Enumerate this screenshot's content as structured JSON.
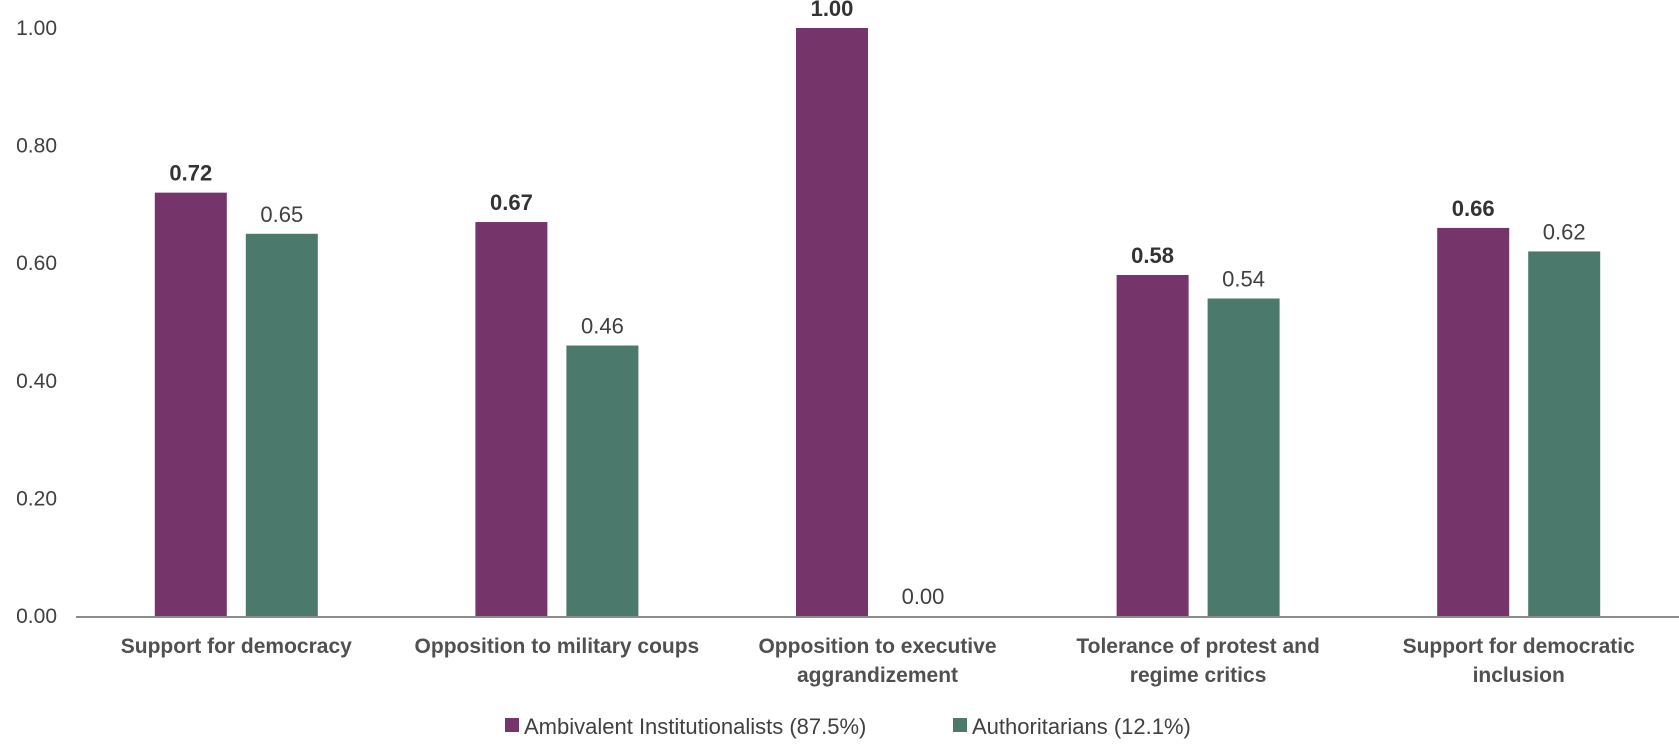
{
  "chart_data": {
    "type": "bar",
    "title": "",
    "xlabel": "",
    "ylabel": "",
    "ylim": [
      0,
      1
    ],
    "yticks": [
      "0.00",
      "0.20",
      "0.40",
      "0.60",
      "0.80",
      "1.00"
    ],
    "grid": false,
    "legend_position": "bottom-center",
    "categories": [
      [
        "Support for democracy"
      ],
      [
        "Opposition to military coups"
      ],
      [
        "Opposition to executive",
        "aggrandizement"
      ],
      [
        "Tolerance of protest and",
        "regime critics"
      ],
      [
        "Support for democratic",
        "inclusion"
      ]
    ],
    "series": [
      {
        "name": "Ambivalent Institutionalists (87.5%)",
        "color": "#76356a",
        "values": [
          0.72,
          0.67,
          1.0,
          0.58,
          0.66
        ],
        "labels": [
          "0.72",
          "0.67",
          "1.00",
          "0.58",
          "0.66"
        ],
        "label_bold": true
      },
      {
        "name": "Authoritarians (12.1%)",
        "color": "#4b796c",
        "values": [
          0.65,
          0.46,
          0.0,
          0.54,
          0.62
        ],
        "labels": [
          "0.65",
          "0.46",
          "0.00",
          "0.54",
          "0.62"
        ],
        "label_bold": false
      }
    ]
  }
}
